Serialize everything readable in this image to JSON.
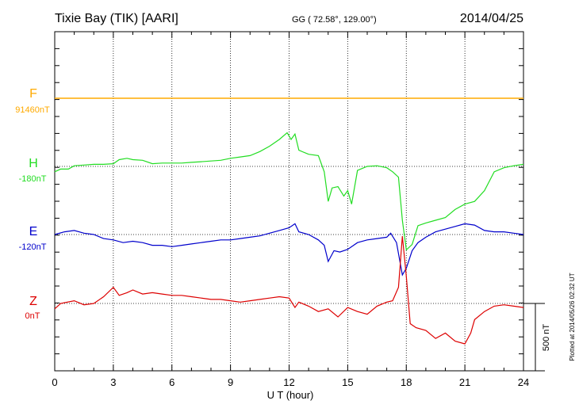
{
  "header": {
    "station": "Tixie Bay (TIK)  [AARI]",
    "coords": "GG ( 72.58°, 129.00°)",
    "date": "2014/04/25"
  },
  "side_note": "Plotted at 2014/05/26 02:32 UT",
  "scale_label": "500 nT",
  "colors": {
    "F": "#ffaa00",
    "H": "#22dd22",
    "E": "#0000cc",
    "Z": "#dd0000",
    "grid": "#000000"
  },
  "chart_data": {
    "type": "line",
    "xlabel": "U T (hour)",
    "xlim": [
      0,
      24
    ],
    "xticks": [
      "0",
      "3",
      "6",
      "9",
      "12",
      "15",
      "18",
      "21",
      "24"
    ],
    "scale_bar_nT": 500,
    "series": [
      {
        "name": "F",
        "baseline_label": "91460nT",
        "x": [
          0,
          24
        ],
        "y": [
          0,
          0
        ]
      },
      {
        "name": "H",
        "baseline_label": "-180nT",
        "x": [
          0,
          0.3,
          0.7,
          1,
          1.5,
          2,
          2.5,
          3,
          3.3,
          3.7,
          4,
          4.5,
          5,
          5.5,
          6,
          6.5,
          7,
          7.5,
          8,
          8.5,
          9,
          9.5,
          10,
          10.5,
          11,
          11.5,
          11.9,
          12.1,
          12.3,
          12.5,
          13,
          13.5,
          13.8,
          14,
          14.2,
          14.5,
          14.8,
          15,
          15.2,
          15.5,
          16,
          16.5,
          17,
          17.3,
          17.6,
          17.8,
          18,
          18.3,
          18.6,
          19,
          19.5,
          20,
          20.5,
          21,
          21.5,
          22,
          22.5,
          23,
          23.5,
          24
        ],
        "y": [
          -40,
          -20,
          -20,
          5,
          10,
          15,
          15,
          20,
          50,
          60,
          50,
          45,
          20,
          25,
          25,
          25,
          30,
          35,
          40,
          45,
          60,
          70,
          80,
          110,
          150,
          200,
          250,
          200,
          240,
          120,
          90,
          80,
          -40,
          -260,
          -160,
          -150,
          -220,
          -180,
          -280,
          -30,
          0,
          5,
          -10,
          -40,
          -80,
          -400,
          -620,
          -580,
          -440,
          -420,
          -400,
          -380,
          -320,
          -280,
          -260,
          -180,
          -40,
          -10,
          5,
          15
        ]
      },
      {
        "name": "E",
        "baseline_label": "-120nT",
        "x": [
          0,
          0.5,
          1,
          1.5,
          2,
          2.5,
          3,
          3.5,
          4,
          4.5,
          5,
          5.5,
          6,
          6.5,
          7,
          7.5,
          8,
          8.5,
          9,
          9.5,
          10,
          10.5,
          11,
          11.5,
          12,
          12.3,
          12.5,
          13,
          13.5,
          13.8,
          14,
          14.3,
          14.6,
          15,
          15.5,
          16,
          16.5,
          17,
          17.2,
          17.5,
          17.8,
          18,
          18.3,
          18.6,
          19,
          19.5,
          20,
          20.5,
          21,
          21.5,
          22,
          22.5,
          23,
          23.5,
          24
        ],
        "y": [
          0,
          20,
          30,
          10,
          0,
          -30,
          -40,
          -60,
          -50,
          -60,
          -80,
          -80,
          -90,
          -80,
          -70,
          -60,
          -50,
          -40,
          -40,
          -30,
          -20,
          -10,
          10,
          30,
          50,
          80,
          20,
          0,
          -40,
          -80,
          -200,
          -120,
          -130,
          -110,
          -60,
          -40,
          -30,
          -20,
          10,
          -60,
          -300,
          -250,
          -120,
          -60,
          -20,
          20,
          40,
          60,
          80,
          70,
          30,
          20,
          20,
          10,
          0
        ]
      },
      {
        "name": "Z",
        "baseline_label": "0nT",
        "x": [
          0,
          0.3,
          1,
          1.5,
          2,
          2.5,
          3,
          3.3,
          3.7,
          4,
          4.5,
          5,
          5.5,
          6,
          6.5,
          7,
          7.5,
          8,
          8.5,
          9,
          9.5,
          10,
          10.5,
          11,
          11.5,
          12,
          12.3,
          12.5,
          13,
          13.5,
          14,
          14.5,
          15,
          15.5,
          16,
          16.5,
          17,
          17.3,
          17.6,
          17.8,
          17.9,
          18,
          18.2,
          18.5,
          19,
          19.5,
          20,
          20.5,
          21,
          21.3,
          21.5,
          22,
          22.5,
          23,
          23.5,
          24
        ],
        "y": [
          -40,
          0,
          20,
          -10,
          0,
          50,
          120,
          60,
          80,
          100,
          70,
          80,
          70,
          60,
          60,
          50,
          40,
          30,
          30,
          20,
          10,
          20,
          30,
          40,
          50,
          40,
          -30,
          10,
          -20,
          -60,
          -40,
          -100,
          -30,
          -60,
          -80,
          -20,
          10,
          20,
          120,
          500,
          350,
          200,
          -150,
          -180,
          -200,
          -260,
          -220,
          -280,
          -300,
          -220,
          -120,
          -60,
          -20,
          -10,
          -20,
          -30
        ]
      }
    ]
  }
}
